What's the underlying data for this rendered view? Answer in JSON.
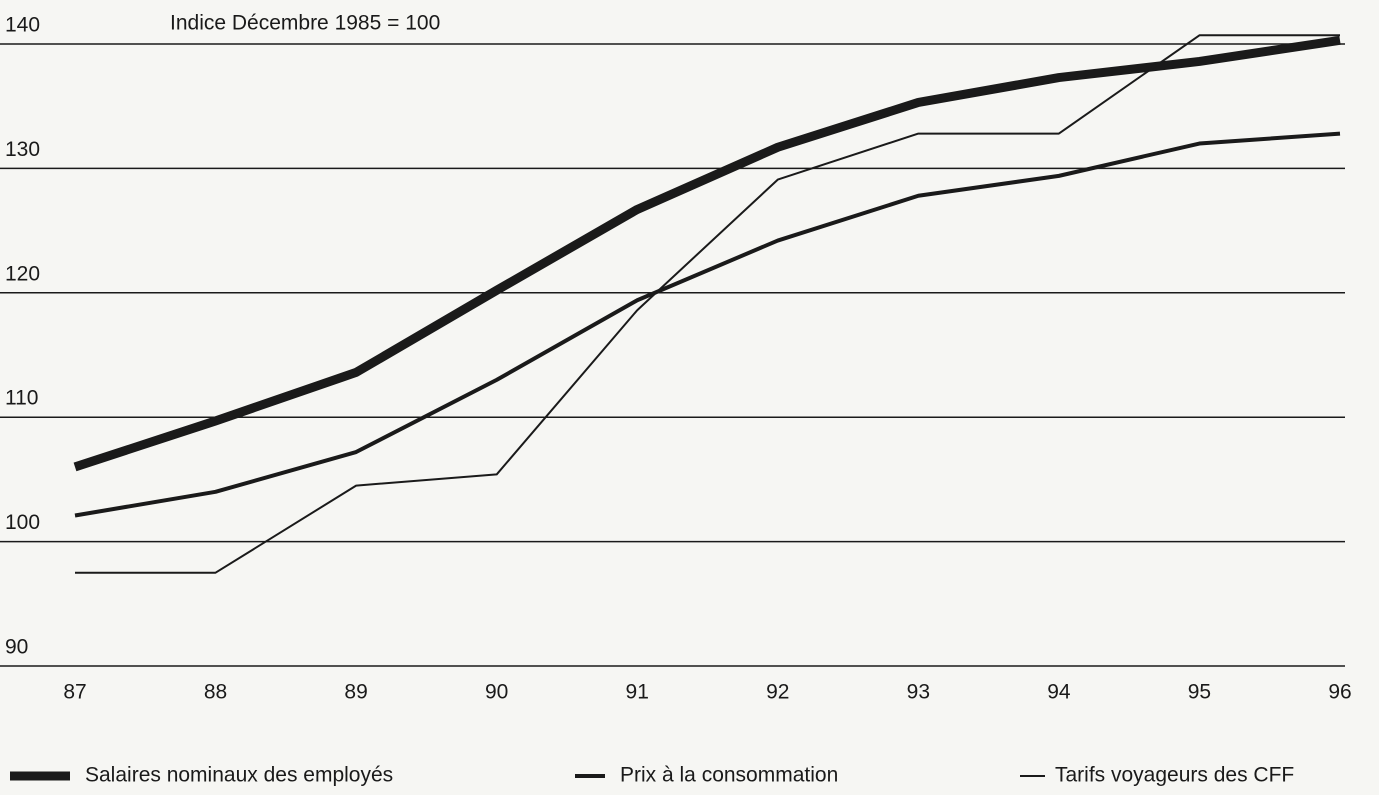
{
  "chart_data": {
    "type": "line",
    "subtitle": "Indice Décembre 1985 = 100",
    "categories": [
      "87",
      "88",
      "89",
      "90",
      "91",
      "92",
      "93",
      "94",
      "95",
      "96"
    ],
    "series": [
      {
        "name": "Salaires nominaux des employés",
        "color": "#1a1a1a",
        "values": [
          106.0,
          109.7,
          113.6,
          120.2,
          126.7,
          131.7,
          135.3,
          137.3,
          138.6,
          140.3
        ]
      },
      {
        "name": "Prix à la consommation",
        "color": "#1a1a1a",
        "values": [
          102.1,
          104.0,
          107.2,
          113.0,
          119.4,
          124.2,
          127.8,
          129.4,
          132.0,
          132.8
        ]
      },
      {
        "name": "Tarifs voyageurs des CFF",
        "color": "#1a1a1a",
        "values": [
          97.5,
          97.5,
          104.5,
          105.4,
          118.6,
          129.1,
          132.8,
          132.8,
          140.7,
          140.7
        ]
      }
    ],
    "ylim": [
      90,
      140
    ],
    "yticks": [
      90,
      100,
      110,
      120,
      130,
      140
    ],
    "grid": true,
    "legend": "bottom"
  }
}
